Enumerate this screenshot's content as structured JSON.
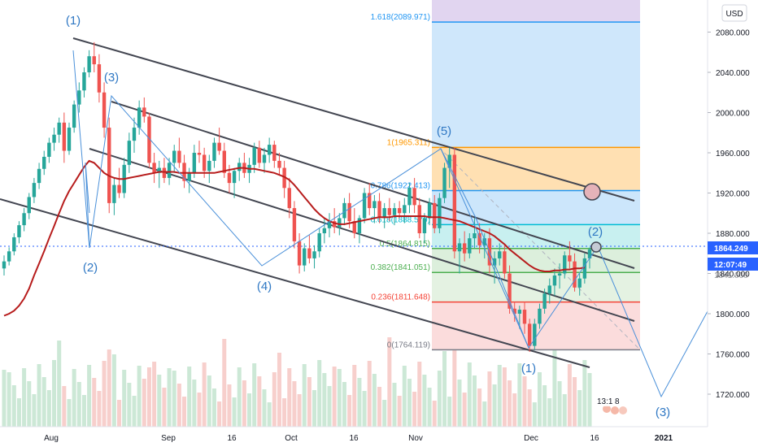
{
  "chart_data": {
    "type": "candlestick",
    "currency_label": "USD",
    "y_range": [
      1680,
      2110
    ],
    "y_ticks": [
      "2080.000",
      "2040.000",
      "2000.000",
      "1960.000",
      "1920.000",
      "1880.000",
      "1840.000",
      "1800.000",
      "1760.000",
      "1720.000"
    ],
    "x_ticks": [
      "Aug",
      "Sep",
      "16",
      "Oct",
      "16",
      "Nov",
      "Dec",
      "16",
      "2021"
    ],
    "last_price": "1864.249",
    "countdown": "12:07:49",
    "hidden_price_label": "1841.000",
    "price_line_color": "#2962ff",
    "fib_levels": [
      {
        "ratio": 1.618,
        "price": 2089.971,
        "label": "1.618(2089.971)",
        "color": "#2196f3"
      },
      {
        "ratio": 1,
        "price": 1965.311,
        "label": "1(1965.311)",
        "color": "#ff9800"
      },
      {
        "ratio": 0.786,
        "price": 1922.413,
        "label": "0.786(1922.413)",
        "color": "#2196f3"
      },
      {
        "ratio": 0.618,
        "price": 1888.579,
        "label": "0.618(1888.579)",
        "color": "#00bcd4"
      },
      {
        "ratio": 0.5,
        "price": 1864.815,
        "label": "0.5(1864.815)",
        "color": "#4caf50"
      },
      {
        "ratio": 0.382,
        "price": 1841.051,
        "label": "0.382(1841.051)",
        "color": "#4caf50"
      },
      {
        "ratio": 0.236,
        "price": 1811.648,
        "label": "0.236(1811.648)",
        "color": "#f44336"
      },
      {
        "ratio": 0,
        "price": 1764.119,
        "label": "0(1764.119)",
        "color": "#787b86"
      }
    ],
    "wave_labels": [
      "(1)",
      "(2)",
      "(3)",
      "(4)",
      "(5)",
      "(1)",
      "(2)",
      "(3)"
    ],
    "event_badge": {
      "text": "13:1",
      "count": "8"
    },
    "candles_ohlc": [
      [
        1845,
        1858,
        1838,
        1852
      ],
      [
        1852,
        1866,
        1848,
        1862
      ],
      [
        1862,
        1880,
        1858,
        1876
      ],
      [
        1876,
        1892,
        1870,
        1888
      ],
      [
        1888,
        1905,
        1882,
        1900
      ],
      [
        1900,
        1920,
        1894,
        1916
      ],
      [
        1916,
        1935,
        1910,
        1930
      ],
      [
        1930,
        1950,
        1924,
        1944
      ],
      [
        1944,
        1962,
        1938,
        1956
      ],
      [
        1956,
        1975,
        1950,
        1970
      ],
      [
        1970,
        1985,
        1962,
        1978
      ],
      [
        1978,
        1995,
        1970,
        1990
      ],
      [
        1990,
        2000,
        1950,
        1962
      ],
      [
        1962,
        1990,
        1958,
        1985
      ],
      [
        1985,
        2012,
        1980,
        2008
      ],
      [
        2008,
        2030,
        2000,
        2022
      ],
      [
        2022,
        2045,
        2015,
        2040
      ],
      [
        2040,
        2062,
        2035,
        2056
      ],
      [
        2056,
        2070,
        2040,
        2048
      ],
      [
        2048,
        2058,
        2010,
        2020
      ],
      [
        2020,
        2030,
        1975,
        1985
      ],
      [
        1985,
        1995,
        1900,
        1910
      ],
      [
        1910,
        1935,
        1898,
        1928
      ],
      [
        1928,
        1945,
        1915,
        1920
      ],
      [
        1920,
        1955,
        1915,
        1948
      ],
      [
        1948,
        1980,
        1940,
        1972
      ],
      [
        1972,
        1995,
        1960,
        1985
      ],
      [
        1985,
        2012,
        1978,
        2005
      ],
      [
        2005,
        2015,
        1990,
        1996
      ],
      [
        1996,
        2000,
        1945,
        1950
      ],
      [
        1950,
        1960,
        1930,
        1940
      ],
      [
        1940,
        1952,
        1925,
        1945
      ],
      [
        1945,
        1955,
        1930,
        1935
      ],
      [
        1935,
        1955,
        1928,
        1950
      ],
      [
        1950,
        1968,
        1940,
        1962
      ],
      [
        1962,
        1975,
        1945,
        1950
      ],
      [
        1950,
        1958,
        1925,
        1932
      ],
      [
        1932,
        1945,
        1920,
        1940
      ],
      [
        1940,
        1968,
        1935,
        1960
      ],
      [
        1960,
        1972,
        1950,
        1958
      ],
      [
        1958,
        1965,
        1935,
        1942
      ],
      [
        1942,
        1958,
        1930,
        1952
      ],
      [
        1952,
        1975,
        1945,
        1970
      ],
      [
        1970,
        1985,
        1958,
        1962
      ],
      [
        1962,
        1970,
        1935,
        1940
      ],
      [
        1940,
        1948,
        1920,
        1930
      ],
      [
        1930,
        1945,
        1915,
        1942
      ],
      [
        1942,
        1955,
        1932,
        1950
      ],
      [
        1950,
        1960,
        1935,
        1940
      ],
      [
        1940,
        1955,
        1930,
        1948
      ],
      [
        1948,
        1970,
        1940,
        1965
      ],
      [
        1965,
        1972,
        1945,
        1950
      ],
      [
        1950,
        1965,
        1940,
        1958
      ],
      [
        1958,
        1975,
        1950,
        1968
      ],
      [
        1968,
        1972,
        1945,
        1952
      ],
      [
        1952,
        1960,
        1938,
        1945
      ],
      [
        1945,
        1952,
        1915,
        1925
      ],
      [
        1925,
        1935,
        1895,
        1905
      ],
      [
        1905,
        1912,
        1865,
        1872
      ],
      [
        1872,
        1880,
        1840,
        1848
      ],
      [
        1848,
        1870,
        1842,
        1865
      ],
      [
        1865,
        1878,
        1850,
        1855
      ],
      [
        1855,
        1868,
        1845,
        1862
      ],
      [
        1862,
        1885,
        1856,
        1880
      ],
      [
        1880,
        1895,
        1870,
        1885
      ],
      [
        1885,
        1900,
        1876,
        1892
      ],
      [
        1892,
        1905,
        1880,
        1886
      ],
      [
        1886,
        1900,
        1878,
        1895
      ],
      [
        1895,
        1915,
        1888,
        1910
      ],
      [
        1910,
        1920,
        1885,
        1892
      ],
      [
        1892,
        1905,
        1875,
        1880
      ],
      [
        1880,
        1898,
        1870,
        1895
      ],
      [
        1895,
        1925,
        1890,
        1920
      ],
      [
        1920,
        1930,
        1898,
        1905
      ],
      [
        1905,
        1918,
        1890,
        1912
      ],
      [
        1912,
        1920,
        1890,
        1895
      ],
      [
        1895,
        1910,
        1885,
        1905
      ],
      [
        1905,
        1915,
        1892,
        1898
      ],
      [
        1898,
        1910,
        1888,
        1905
      ],
      [
        1905,
        1912,
        1895,
        1900
      ],
      [
        1900,
        1915,
        1890,
        1908
      ],
      [
        1908,
        1930,
        1900,
        1925
      ],
      [
        1925,
        1935,
        1900,
        1908
      ],
      [
        1908,
        1915,
        1875,
        1880
      ],
      [
        1880,
        1900,
        1870,
        1895
      ],
      [
        1895,
        1915,
        1888,
        1910
      ],
      [
        1910,
        1918,
        1880,
        1885
      ],
      [
        1885,
        1920,
        1880,
        1915
      ],
      [
        1915,
        1950,
        1910,
        1945
      ],
      [
        1945,
        1965,
        1925,
        1958
      ],
      [
        1958,
        1965,
        1855,
        1862
      ],
      [
        1862,
        1875,
        1840,
        1870
      ],
      [
        1870,
        1882,
        1852,
        1860
      ],
      [
        1860,
        1880,
        1855,
        1875
      ],
      [
        1875,
        1895,
        1865,
        1880
      ],
      [
        1880,
        1890,
        1860,
        1868
      ],
      [
        1868,
        1880,
        1855,
        1875
      ],
      [
        1875,
        1885,
        1840,
        1848
      ],
      [
        1848,
        1862,
        1830,
        1855
      ],
      [
        1855,
        1870,
        1848,
        1862
      ],
      [
        1862,
        1868,
        1835,
        1840
      ],
      [
        1840,
        1848,
        1800,
        1805
      ],
      [
        1805,
        1812,
        1792,
        1800
      ],
      [
        1800,
        1808,
        1785,
        1804
      ],
      [
        1804,
        1812,
        1780,
        1790
      ],
      [
        1790,
        1795,
        1762,
        1768
      ],
      [
        1768,
        1795,
        1764,
        1790
      ],
      [
        1790,
        1810,
        1785,
        1805
      ],
      [
        1805,
        1825,
        1800,
        1820
      ],
      [
        1820,
        1835,
        1810,
        1828
      ],
      [
        1828,
        1845,
        1818,
        1838
      ],
      [
        1838,
        1850,
        1825,
        1840
      ],
      [
        1840,
        1862,
        1835,
        1858
      ],
      [
        1858,
        1872,
        1845,
        1852
      ],
      [
        1852,
        1860,
        1822,
        1826
      ],
      [
        1826,
        1840,
        1818,
        1835
      ],
      [
        1835,
        1860,
        1830,
        1855
      ],
      [
        1855,
        1866,
        1845,
        1864
      ]
    ],
    "ma_values": [
      1798,
      1800,
      1803,
      1808,
      1815,
      1825,
      1838,
      1850,
      1862,
      1875,
      1887,
      1900,
      1912,
      1922,
      1930,
      1938,
      1946,
      1952,
      1950,
      1945,
      1940,
      1937,
      1935,
      1934,
      1934,
      1935,
      1936,
      1937,
      1938,
      1939,
      1940,
      1941,
      1941,
      1941,
      1941,
      1940,
      1940,
      1940,
      1940,
      1940,
      1940,
      1940,
      1940,
      1941,
      1942,
      1943,
      1944,
      1945,
      1945,
      1944,
      1944,
      1943,
      1942,
      1941,
      1940,
      1938,
      1936,
      1933,
      1928,
      1922,
      1916,
      1910,
      1904,
      1899,
      1895,
      1892,
      1890,
      1889,
      1889,
      1890,
      1891,
      1892,
      1893,
      1894,
      1895,
      1896,
      1896,
      1896,
      1897,
      1897,
      1897,
      1897,
      1897,
      1897,
      1897,
      1896,
      1896,
      1896,
      1895,
      1894,
      1893,
      1892,
      1890,
      1888,
      1886,
      1884,
      1882,
      1880,
      1877,
      1873,
      1869,
      1864,
      1860,
      1856,
      1852,
      1848,
      1845,
      1843,
      1842,
      1842,
      1843,
      1843,
      1844,
      1844,
      1845,
      1845,
      1846
    ]
  }
}
